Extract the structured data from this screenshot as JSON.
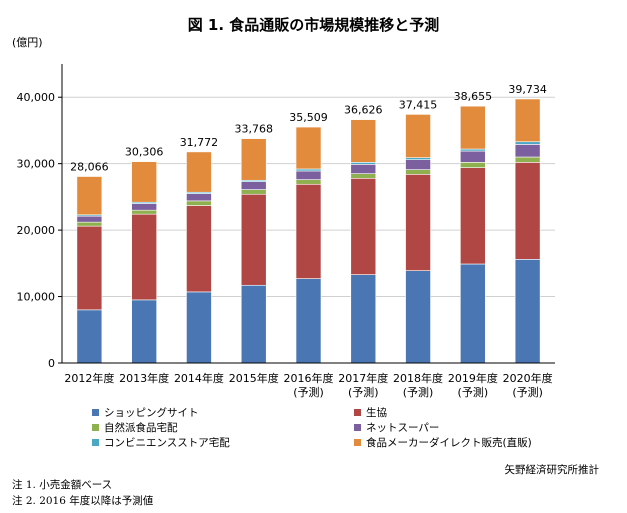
{
  "chart_data": {
    "type": "bar",
    "stacked": true,
    "title": "図 1. 食品通販の市場規模推移と予測",
    "ylabel": "(億円)",
    "ylim": [
      0,
      45000
    ],
    "yticks": [
      0,
      10000,
      20000,
      30000,
      40000
    ],
    "ytick_labels": [
      "0",
      "10,000",
      "20,000",
      "30,000",
      "40,000"
    ],
    "grid": true,
    "legend_position": "bottom",
    "categories": [
      {
        "year": "2012年度",
        "sub": ""
      },
      {
        "year": "2013年度",
        "sub": ""
      },
      {
        "year": "2014年度",
        "sub": ""
      },
      {
        "year": "2015年度",
        "sub": ""
      },
      {
        "year": "2016年度",
        "sub": "(予測)"
      },
      {
        "year": "2017年度",
        "sub": "(予測)"
      },
      {
        "year": "2018年度",
        "sub": "(予測)"
      },
      {
        "year": "2019年度",
        "sub": "(予測)"
      },
      {
        "year": "2020年度",
        "sub": "(予測)"
      }
    ],
    "totals": [
      28066,
      30306,
      31772,
      33768,
      35509,
      36626,
      37415,
      38655,
      39734
    ],
    "total_labels": [
      "28,066",
      "30,306",
      "31,772",
      "33,768",
      "35,509",
      "36,626",
      "37,415",
      "38,655",
      "39,734"
    ],
    "series": [
      {
        "name": "ショッピングサイト",
        "color": "#4a77b4",
        "values": [
          8000,
          9500,
          10700,
          11700,
          12700,
          13300,
          13900,
          14900,
          15600
        ]
      },
      {
        "name": "生協",
        "color": "#b04744",
        "values": [
          12600,
          12900,
          13000,
          13700,
          14200,
          14500,
          14500,
          14500,
          14600
        ]
      },
      {
        "name": "自然派食品宅配",
        "color": "#8eb04e",
        "values": [
          600,
          600,
          700,
          700,
          700,
          700,
          700,
          800,
          800
        ]
      },
      {
        "name": "ネットスーパー",
        "color": "#7c5f9e",
        "values": [
          900,
          1000,
          1100,
          1200,
          1300,
          1400,
          1500,
          1700,
          1900
        ]
      },
      {
        "name": "コンビニエンスストア宅配",
        "color": "#4aa8c4",
        "values": [
          200,
          200,
          200,
          200,
          300,
          300,
          300,
          300,
          400
        ]
      },
      {
        "name": "食品メーカーダイレクト販売(直販)",
        "color": "#e38b3c",
        "values": [
          5766,
          6106,
          6072,
          6268,
          6309,
          6426,
          6515,
          6455,
          6434
        ]
      }
    ]
  },
  "source": "矢野経済研究所推計",
  "footnotes": [
    "注 1. 小売金額ベース",
    "注 2. 2016 年度以降は予測値"
  ]
}
